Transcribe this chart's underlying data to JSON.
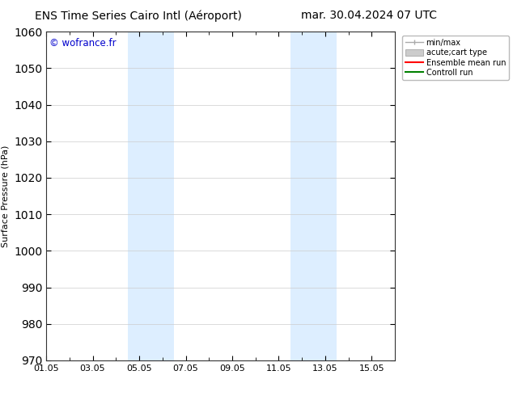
{
  "title_left": "ENS Time Series Cairo Intl (Aéroport)",
  "title_right": "mar. 30.04.2024 07 UTC",
  "ylabel": "Surface Pressure (hPa)",
  "ylim": [
    970,
    1060
  ],
  "yticks": [
    970,
    980,
    990,
    1000,
    1010,
    1020,
    1030,
    1040,
    1050,
    1060
  ],
  "xlim": [
    0,
    15
  ],
  "xtick_labels": [
    "01.05",
    "03.05",
    "05.05",
    "07.05",
    "09.05",
    "11.05",
    "13.05",
    "15.05"
  ],
  "xtick_positions": [
    0,
    2,
    4,
    6,
    8,
    10,
    12,
    14
  ],
  "shaded_regions": [
    {
      "start": 3.5,
      "end": 4.5,
      "color": "#ddeeff"
    },
    {
      "start": 4.5,
      "end": 5.5,
      "color": "#ddeeff"
    },
    {
      "start": 10.5,
      "end": 11.5,
      "color": "#ddeeff"
    },
    {
      "start": 11.5,
      "end": 12.5,
      "color": "#ddeeff"
    }
  ],
  "watermark_text": "© wofrance.fr",
  "watermark_color": "#0000cc",
  "legend_entries": [
    {
      "label": "min/max",
      "color": "#aaaaaa",
      "type": "line_with_caps"
    },
    {
      "label": "acute;cart type",
      "color": "#cccccc",
      "type": "bar"
    },
    {
      "label": "Ensemble mean run",
      "color": "#ff0000",
      "type": "line"
    },
    {
      "label": "Controll run",
      "color": "#008000",
      "type": "line"
    }
  ],
  "background_color": "#ffffff",
  "grid_color": "#cccccc",
  "title_fontsize": 10,
  "axis_fontsize": 8,
  "tick_fontsize": 8
}
